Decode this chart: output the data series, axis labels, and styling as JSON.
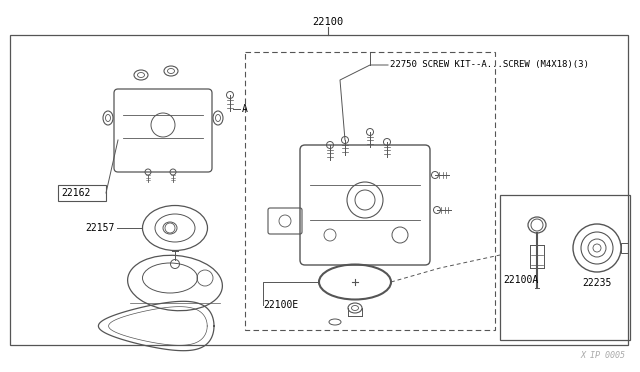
{
  "bg_color": "#ffffff",
  "line_color": "#555555",
  "text_color": "#000000",
  "title_label": "22100",
  "label_A": "A",
  "label_22162": "22162",
  "label_22157": "22157",
  "label_22750": "22750 SCREW KIT--A...SCREW (M4X18)(3)",
  "label_22100E": "22100E",
  "label_22100A": "22100A",
  "label_22235": "22235",
  "watermark": "X IP 0005",
  "figsize": [
    6.4,
    3.72
  ],
  "dpi": 100
}
